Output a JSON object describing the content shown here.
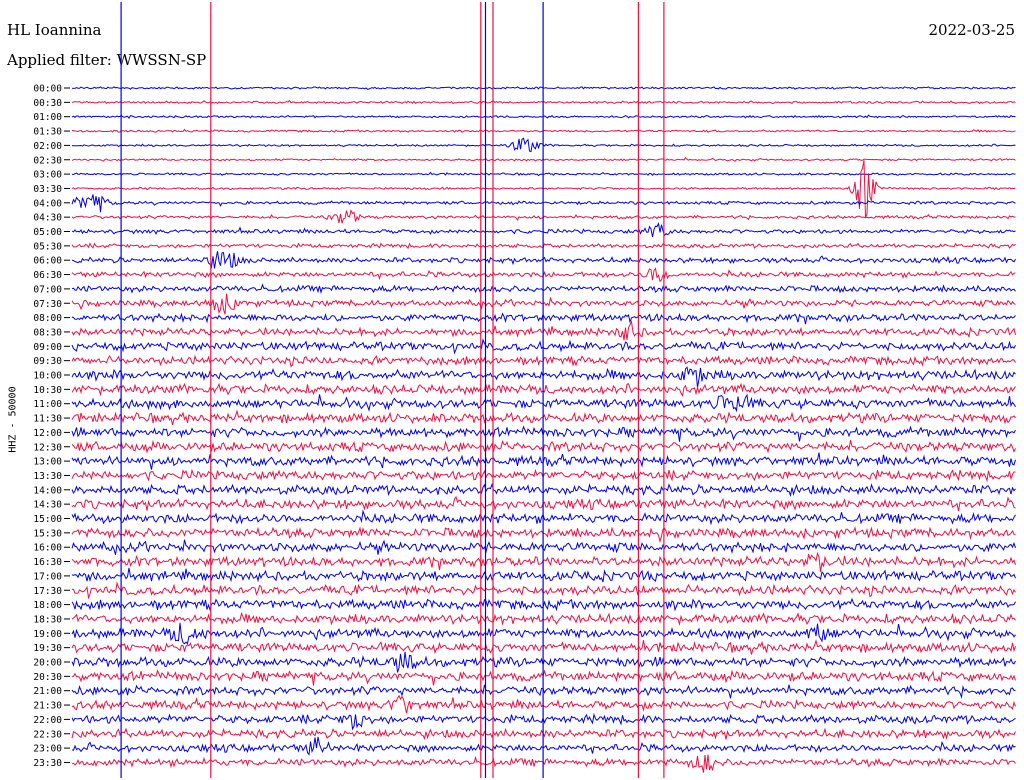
{
  "header": {
    "station": "HL Ioannina",
    "date": "2022-03-25",
    "filter": "Applied filter: WWSSN-SP",
    "channel_label": "HHZ - 50000"
  },
  "colors": {
    "trace_a": "#0000ee",
    "trace_b": "#ee1144",
    "text": "#000000",
    "background": "#ffffff"
  },
  "chart_data": {
    "type": "line",
    "title": "HL Ioannina",
    "subtitle": "Applied filter: WWSSN-SP",
    "date": "2022-03-25",
    "ylabel": "HHZ - 50000",
    "xlabel": "",
    "rows": [
      "00:00",
      "00:30",
      "01:00",
      "01:30",
      "02:00",
      "02:30",
      "03:00",
      "03:30",
      "04:00",
      "04:30",
      "05:00",
      "05:30",
      "06:00",
      "06:30",
      "07:00",
      "07:30",
      "08:00",
      "08:30",
      "09:00",
      "09:30",
      "10:00",
      "10:30",
      "11:00",
      "11:30",
      "12:00",
      "12:30",
      "13:00",
      "13:30",
      "14:00",
      "14:30",
      "15:00",
      "15:30",
      "16:00",
      "16:30",
      "17:00",
      "17:30",
      "18:00",
      "18:30",
      "19:00",
      "19:30",
      "20:00",
      "20:30",
      "21:00",
      "21:30",
      "22:00",
      "22:30",
      "23:00",
      "23:30"
    ],
    "row_colors": [
      "trace_a",
      "trace_b"
    ],
    "row_noise_level": [
      1,
      1,
      1,
      1,
      1,
      1,
      1,
      1,
      1.5,
      1.5,
      2,
      2,
      2.5,
      2.5,
      3,
      3,
      3.5,
      3.5,
      4,
      4,
      4.5,
      4.5,
      4.5,
      4.5,
      4.5,
      4.5,
      4.5,
      4.5,
      4.5,
      4.5,
      4.5,
      4.5,
      4.5,
      4.5,
      4.5,
      4.5,
      4.5,
      4.5,
      4.5,
      4.5,
      4.5,
      4.5,
      4,
      4,
      4,
      4,
      3.5,
      3.5
    ],
    "events": [
      {
        "row": 4,
        "pos": 0.48,
        "amp": 9,
        "width": 0.012
      },
      {
        "row": 7,
        "pos": 0.84,
        "amp": 30,
        "width": 0.01
      },
      {
        "row": 8,
        "pos": 0.02,
        "amp": 10,
        "width": 0.015
      },
      {
        "row": 9,
        "pos": 0.29,
        "amp": 8,
        "width": 0.012
      },
      {
        "row": 10,
        "pos": 0.62,
        "amp": 8,
        "width": 0.01
      },
      {
        "row": 12,
        "pos": 0.16,
        "amp": 9,
        "width": 0.015
      },
      {
        "row": 13,
        "pos": 0.62,
        "amp": 8,
        "width": 0.01
      },
      {
        "row": 15,
        "pos": 0.16,
        "amp": 8,
        "width": 0.015
      },
      {
        "row": 17,
        "pos": 0.59,
        "amp": 8,
        "width": 0.01
      },
      {
        "row": 20,
        "pos": 0.66,
        "amp": 9,
        "width": 0.012
      },
      {
        "row": 22,
        "pos": 0.7,
        "amp": 9,
        "width": 0.015
      },
      {
        "row": 33,
        "pos": 0.79,
        "amp": 7,
        "width": 0.012
      },
      {
        "row": 38,
        "pos": 0.12,
        "amp": 8,
        "width": 0.015
      },
      {
        "row": 38,
        "pos": 0.79,
        "amp": 7,
        "width": 0.01
      },
      {
        "row": 40,
        "pos": 0.35,
        "amp": 8,
        "width": 0.012
      },
      {
        "row": 43,
        "pos": 0.35,
        "amp": 8,
        "width": 0.012
      },
      {
        "row": 44,
        "pos": 0.3,
        "amp": 7,
        "width": 0.012
      },
      {
        "row": 46,
        "pos": 0.26,
        "amp": 9,
        "width": 0.01
      },
      {
        "row": 47,
        "pos": 0.67,
        "amp": 9,
        "width": 0.01
      }
    ],
    "spikes": [
      {
        "pos": 0.433,
        "color": "trace_b"
      },
      {
        "pos": 0.438,
        "color": "trace_a"
      },
      {
        "pos": 0.446,
        "color": "trace_b"
      },
      {
        "pos": 0.499,
        "color": "trace_a"
      },
      {
        "pos": 0.6,
        "color": "trace_b"
      },
      {
        "pos": 0.627,
        "color": "trace_b"
      },
      {
        "pos": 0.147,
        "color": "trace_b"
      },
      {
        "pos": 0.052,
        "color": "trace_a"
      }
    ]
  }
}
